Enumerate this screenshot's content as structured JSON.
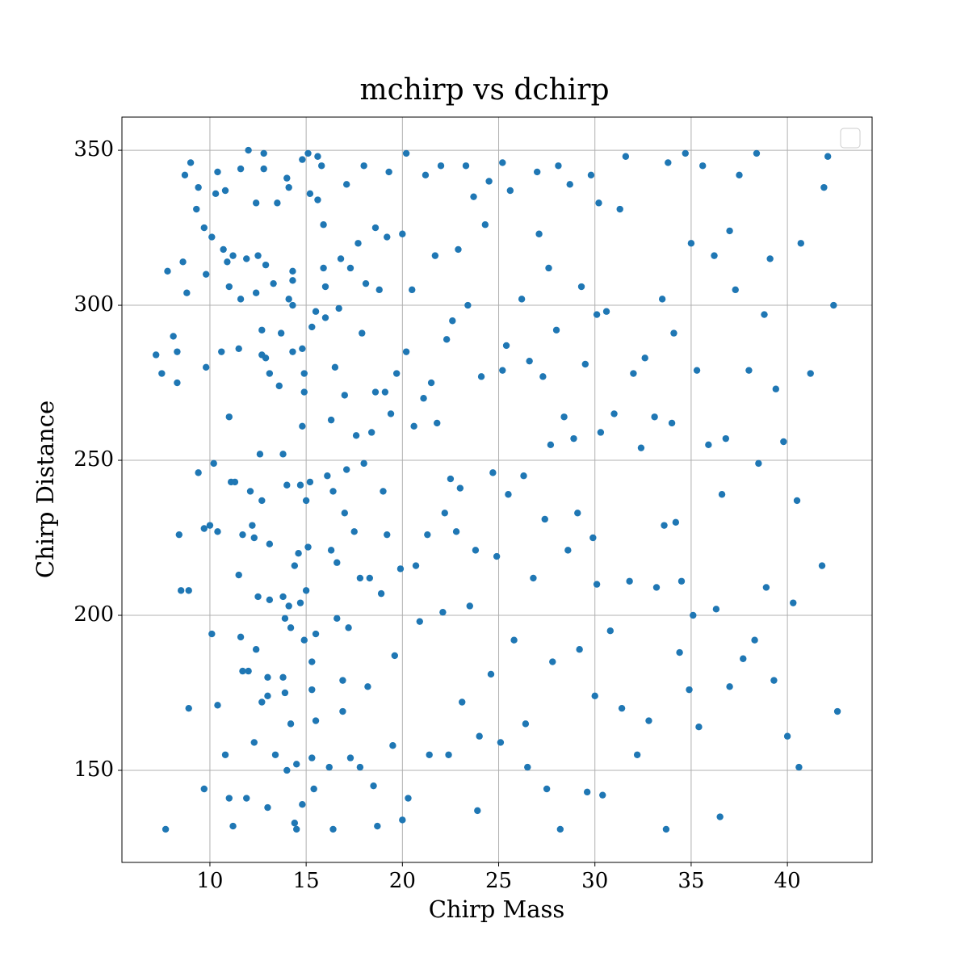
{
  "chart_data": {
    "type": "scatter",
    "title": "mchirp vs dchirp",
    "x_label": "Chirp Mass",
    "y_label": "Chirp Distance",
    "xlim": [
      5.43,
      44.4
    ],
    "ylim": [
      120.3,
      360.7
    ],
    "xticks": [
      10,
      15,
      20,
      25,
      30,
      35,
      40
    ],
    "yticks": [
      150,
      200,
      250,
      300,
      350
    ],
    "grid": true,
    "legend": "upper right",
    "series": [
      {
        "color": "#1f77b4",
        "x": [
          7.2,
          7.5,
          7.8,
          7.7,
          8.1,
          8.3,
          8.3,
          8.4,
          8.5,
          8.6,
          8.7,
          8.8,
          8.9,
          8.9,
          9.0,
          9.3,
          9.4,
          9.4,
          9.7,
          9.7,
          9.7,
          9.8,
          9.8,
          10.0,
          10.1,
          10.1,
          10.2,
          10.3,
          10.4,
          10.4,
          10.4,
          10.7,
          10.6,
          10.8,
          10.8,
          10.9,
          11.0,
          11.0,
          11.0,
          11.1,
          11.2,
          11.2,
          11.3,
          11.5,
          11.5,
          11.6,
          11.6,
          11.6,
          11.7,
          11.7,
          11.9,
          11.9,
          12.0,
          12.0,
          12.1,
          12.2,
          12.3,
          12.3,
          12.4,
          12.4,
          12.4,
          12.5,
          12.5,
          12.6,
          12.7,
          12.7,
          12.7,
          12.7,
          12.8,
          12.8,
          12.9,
          12.9,
          13.0,
          13.0,
          13.0,
          13.1,
          13.1,
          13.1,
          13.5,
          13.3,
          13.4,
          13.6,
          13.7,
          13.8,
          13.8,
          13.8,
          13.9,
          13.9,
          14.0,
          14.0,
          14.0,
          14.1,
          14.1,
          14.1,
          14.2,
          14.2,
          14.3,
          14.3,
          14.3,
          14.3,
          14.4,
          14.4,
          14.5,
          14.5,
          14.6,
          14.7,
          14.7,
          14.8,
          14.8,
          14.8,
          14.8,
          14.9,
          14.9,
          14.9,
          15.0,
          15.0,
          15.1,
          15.1,
          15.2,
          15.2,
          15.3,
          15.3,
          15.3,
          15.3,
          15.4,
          15.5,
          15.5,
          15.5,
          15.6,
          15.6,
          15.8,
          15.9,
          15.9,
          16.0,
          16.0,
          16.1,
          16.2,
          16.3,
          16.3,
          16.4,
          16.4,
          16.5,
          16.6,
          16.6,
          16.7,
          16.8,
          16.9,
          16.9,
          17.0,
          17.0,
          17.1,
          17.1,
          17.2,
          17.3,
          17.3,
          17.5,
          17.6,
          17.7,
          17.8,
          17.8,
          17.9,
          18.0,
          18.0,
          18.1,
          18.2,
          18.3,
          18.4,
          18.5,
          18.6,
          18.6,
          18.7,
          18.8,
          18.9,
          19.0,
          19.1,
          19.2,
          19.2,
          19.3,
          19.4,
          19.5,
          19.6,
          19.7,
          19.9,
          20.0,
          20.0,
          20.2,
          20.2,
          20.3,
          20.5,
          20.6,
          20.7,
          20.9,
          21.1,
          21.2,
          21.3,
          21.4,
          21.5,
          21.7,
          21.8,
          22.0,
          22.1,
          22.2,
          22.3,
          22.4,
          22.5,
          22.6,
          22.8,
          22.9,
          23.0,
          23.1,
          23.3,
          23.4,
          23.5,
          23.7,
          23.8,
          24.0,
          24.1,
          24.3,
          23.9,
          24.5,
          24.6,
          24.7,
          24.9,
          25.1,
          25.2,
          25.2,
          25.4,
          25.5,
          25.6,
          25.8,
          26.2,
          26.3,
          26.4,
          26.5,
          26.6,
          26.8,
          27.0,
          27.1,
          27.3,
          27.4,
          27.5,
          27.6,
          27.7,
          27.8,
          28.0,
          28.1,
          28.2,
          28.4,
          28.6,
          28.7,
          28.9,
          29.1,
          29.2,
          29.3,
          29.5,
          29.6,
          29.8,
          29.9,
          30.0,
          30.1,
          30.1,
          30.2,
          30.3,
          30.4,
          30.6,
          30.8,
          31.0,
          31.3,
          31.4,
          31.6,
          31.8,
          32.0,
          32.2,
          32.4,
          32.6,
          32.8,
          33.1,
          33.2,
          33.5,
          33.6,
          33.7,
          33.8,
          34.0,
          34.1,
          34.2,
          34.4,
          34.5,
          34.7,
          34.9,
          35.0,
          35.1,
          35.3,
          35.4,
          35.6,
          35.9,
          36.2,
          36.3,
          36.5,
          36.6,
          36.8,
          37.0,
          37.0,
          37.3,
          37.5,
          37.7,
          38.0,
          38.3,
          38.4,
          38.5,
          38.8,
          38.9,
          39.1,
          39.3,
          39.4,
          39.8,
          40.0,
          40.3,
          40.5,
          40.6,
          40.7,
          41.2,
          41.8,
          41.9,
          42.1,
          42.4,
          42.6
        ],
        "y": [
          284,
          278,
          311,
          131,
          290,
          285,
          275,
          226,
          208,
          314,
          342,
          304,
          170,
          208,
          346,
          331,
          338,
          246,
          325,
          228,
          144,
          310,
          280,
          229,
          322,
          194,
          249,
          336,
          343,
          227,
          171,
          318,
          285,
          337,
          155,
          314,
          306,
          264,
          141,
          243,
          316,
          132,
          243,
          286,
          213,
          193,
          344,
          302,
          226,
          182,
          315,
          141,
          350,
          182,
          240,
          229,
          225,
          159,
          333,
          304,
          189,
          316,
          206,
          252,
          237,
          172,
          292,
          284,
          344,
          349,
          313,
          283,
          180,
          174,
          138,
          205,
          223,
          278,
          333,
          307,
          155,
          274,
          291,
          252,
          206,
          180,
          199,
          175,
          150,
          242,
          341,
          338,
          302,
          203,
          196,
          165,
          300,
          308,
          311,
          285,
          216,
          133,
          131,
          152,
          220,
          242,
          204,
          347,
          261,
          286,
          139,
          278,
          272,
          192,
          208,
          237,
          349,
          222,
          336,
          243,
          185,
          176,
          154,
          293,
          144,
          298,
          166,
          194,
          348,
          334,
          345,
          326,
          312,
          296,
          306,
          245,
          151,
          263,
          221,
          240,
          131,
          280,
          217,
          199,
          299,
          315,
          179,
          169,
          271,
          233,
          339,
          247,
          196,
          312,
          154,
          227,
          258,
          320,
          212,
          151,
          291,
          345,
          249,
          307,
          177,
          212,
          259,
          145,
          325,
          272,
          132,
          305,
          207,
          240,
          272,
          226,
          322,
          343,
          265,
          158,
          187,
          278,
          215,
          323,
          134,
          349,
          285,
          141,
          305,
          261,
          216,
          198,
          270,
          342,
          226,
          155,
          275,
          316,
          262,
          345,
          201,
          233,
          289,
          155,
          244,
          295,
          227,
          318,
          241,
          172,
          345,
          300,
          203,
          335,
          221,
          161,
          277,
          326,
          137,
          340,
          181,
          246,
          219,
          159,
          346,
          279,
          287,
          239,
          337,
          192,
          302,
          245,
          165,
          151,
          282,
          212,
          343,
          323,
          277,
          231,
          144,
          312,
          255,
          185,
          292,
          345,
          131,
          264,
          221,
          339,
          257,
          233,
          189,
          306,
          281,
          143,
          342,
          225,
          174,
          297,
          210,
          333,
          259,
          142,
          298,
          195,
          265,
          331,
          170,
          348,
          211,
          278,
          155,
          254,
          283,
          166,
          264,
          209,
          302,
          229,
          131,
          346,
          262,
          291,
          230,
          188,
          211,
          349,
          176,
          320,
          200,
          279,
          164,
          345,
          255,
          316,
          202,
          135,
          239,
          257,
          324,
          177,
          305,
          342,
          186,
          279,
          192,
          349,
          249,
          297,
          209,
          315,
          179,
          273,
          256,
          161,
          204,
          237,
          151,
          320,
          278,
          216,
          338,
          348,
          300,
          169
        ]
      }
    ]
  }
}
